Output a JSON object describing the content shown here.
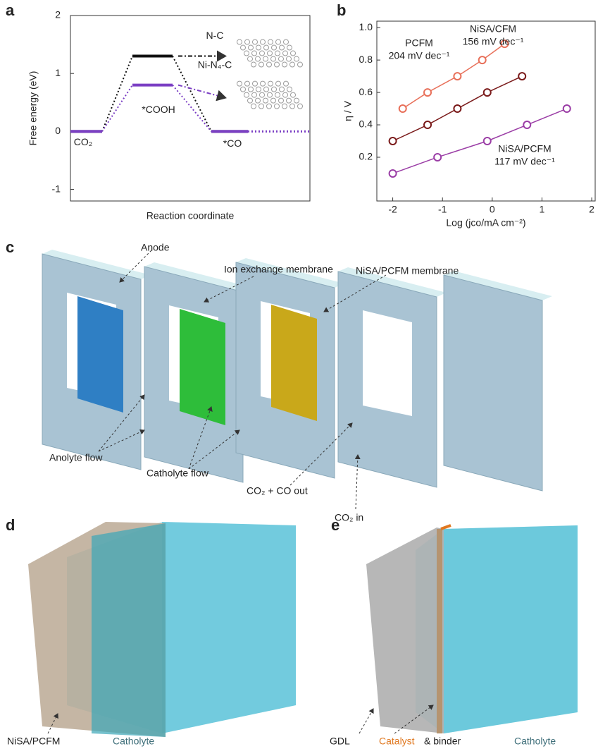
{
  "chart_data": [
    {
      "type": "energy-profile",
      "panel": "a",
      "ylabel": "Free energy (eV)",
      "xlabel": "Reaction coordinate",
      "categories": [
        null,
        null,
        null
      ],
      "series": [
        {
          "name": "N-C",
          "color": "#111111",
          "values": [
            0,
            1.3,
            0
          ]
        },
        {
          "name": "Ni-N₄-C",
          "color": "#7b3fc4",
          "values": [
            0,
            0.8,
            0
          ]
        }
      ],
      "annotations": [
        "CO₂",
        "*COOH",
        "*CO"
      ],
      "ylim": [
        -1.2,
        2
      ],
      "yticks": [
        -1,
        0,
        1,
        2
      ]
    },
    {
      "type": "scatter",
      "panel": "b",
      "ylabel": "η / V",
      "xlabel": "Log (jco/mA cm⁻²)",
      "series": [
        {
          "name": "PCFM",
          "slope_label": "204 mV dec⁻¹",
          "color": "#e8705a",
          "x": [
            -1.8,
            -1.3,
            -0.7,
            -0.2,
            0.25
          ],
          "values": [
            0.5,
            0.6,
            0.7,
            0.8,
            0.9
          ]
        },
        {
          "name": "NiSA/CFM",
          "slope_label": "156 mV dec⁻¹",
          "color": "#7a1a1a",
          "x": [
            -2,
            -1.3,
            -0.7,
            -0.1,
            0.6
          ],
          "values": [
            0.3,
            0.4,
            0.5,
            0.6,
            0.7
          ]
        },
        {
          "name": "NiSA/PCFM",
          "slope_label": "117 mV dec⁻¹",
          "color": "#9b3ea6",
          "x": [
            -2,
            -1.1,
            -0.1,
            0.7,
            1.5
          ],
          "values": [
            0.1,
            0.2,
            0.3,
            0.4,
            0.5
          ]
        }
      ],
      "xlim": [
        -2.32,
        2.07
      ],
      "xticks": [
        -2,
        -1,
        0,
        1,
        2
      ],
      "ylim": [
        -0.07,
        1.04
      ],
      "yticks": [
        0.2,
        0.4,
        0.6,
        0.8,
        {
          "value": 1,
          "label": "1.0"
        }
      ]
    }
  ],
  "diagrams": [
    {
      "panel": "c",
      "labels": [
        "Anode",
        "Ion exchange membrane",
        "NiSA/PCFM membrane",
        "Anolyte flow",
        "Catholyte flow",
        "CO₂ + CO out",
        "CO₂ in"
      ]
    },
    {
      "panel": "d",
      "labels": [
        "NiSA/PCFM",
        "Catholyte"
      ]
    },
    {
      "panel": "e",
      "labels": [
        "GDL",
        "Catalyst",
        "& binder",
        "Catholyte"
      ]
    }
  ]
}
